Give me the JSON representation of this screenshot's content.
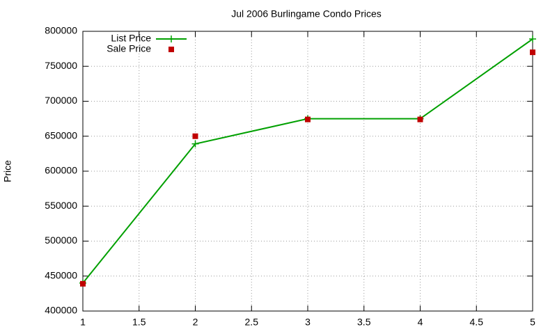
{
  "chart_data": {
    "type": "line",
    "title": "Jul 2006 Burlingame Condo Prices",
    "y_label": "Price",
    "x": [
      1,
      2,
      3,
      4,
      5
    ],
    "series": [
      {
        "name": "List Price",
        "color": "#00a000",
        "style": "linespoints",
        "marker": "plus",
        "values": [
          440000,
          639000,
          675000,
          675000,
          789000
        ]
      },
      {
        "name": "Sale Price",
        "color": "#c00000",
        "style": "points",
        "marker": "square",
        "values": [
          439000,
          650000,
          674000,
          674000,
          770000
        ]
      }
    ],
    "xlim": [
      1,
      5
    ],
    "xticks": [
      1,
      1.5,
      2,
      2.5,
      3,
      3.5,
      4,
      4.5,
      5
    ],
    "ylim": [
      400000,
      800000
    ],
    "yticks": [
      400000,
      450000,
      500000,
      550000,
      600000,
      650000,
      700000,
      750000,
      800000
    ],
    "grid": true,
    "legend": "top-left"
  }
}
